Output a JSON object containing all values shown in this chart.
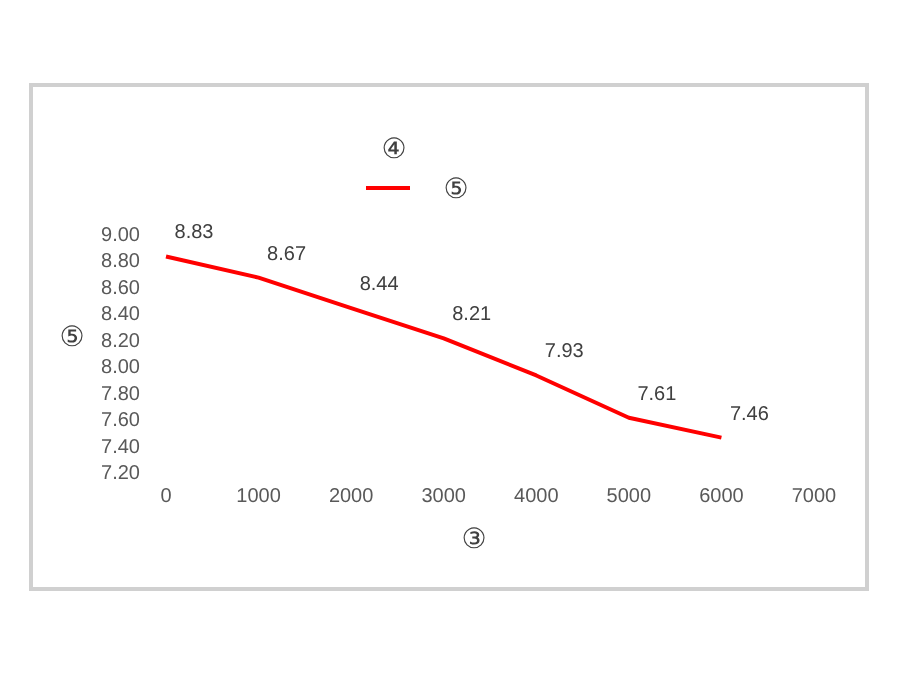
{
  "chart_data": {
    "type": "line",
    "title": "④",
    "xlabel": "③",
    "ylabel": "⑤",
    "x": [
      0,
      1000,
      2000,
      3000,
      4000,
      5000,
      6000
    ],
    "series": [
      {
        "name": "⑤",
        "color": "#ff0000",
        "values": [
          8.83,
          8.67,
          8.44,
          8.21,
          7.93,
          7.61,
          7.46
        ]
      }
    ],
    "xlim": [
      0,
      7000
    ],
    "xticks": [
      0,
      1000,
      2000,
      3000,
      4000,
      5000,
      6000,
      7000
    ],
    "ylim": [
      7.2,
      9.0
    ],
    "yticks": [
      {
        "value": 7.2,
        "label": "7.20"
      },
      {
        "value": 7.4,
        "label": "7.40"
      },
      {
        "value": 7.6,
        "label": "7.60"
      },
      {
        "value": 7.8,
        "label": "7.80"
      },
      {
        "value": 8.0,
        "label": "8.00"
      },
      {
        "value": 8.2,
        "label": "8.20"
      },
      {
        "value": 8.4,
        "label": "8.40"
      },
      {
        "value": 8.6,
        "label": "8.60"
      },
      {
        "value": 8.8,
        "label": "8.80"
      },
      {
        "value": 9.0,
        "label": "9.00"
      }
    ],
    "data_labels": true,
    "legend": "top",
    "grid": false,
    "marker": "none",
    "line_style": "solid"
  }
}
